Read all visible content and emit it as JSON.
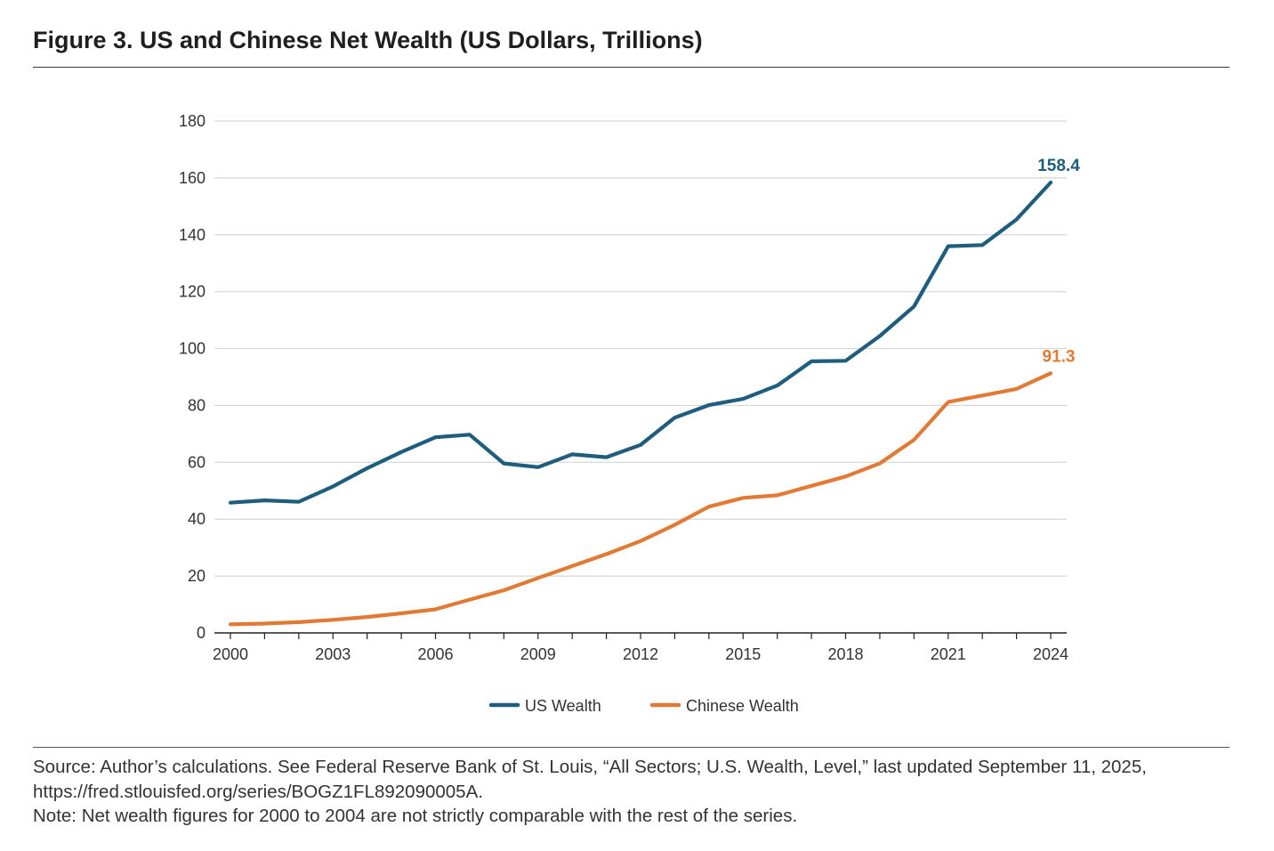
{
  "figure": {
    "title": "Figure 3. US and Chinese Net Wealth (US Dollars, Trillions)"
  },
  "chart_data": {
    "type": "line",
    "title": "Figure 3. US and Chinese Net Wealth (US Dollars, Trillions)",
    "xlabel": "",
    "ylabel": "",
    "x": [
      2000,
      2001,
      2002,
      2003,
      2004,
      2005,
      2006,
      2007,
      2008,
      2009,
      2010,
      2011,
      2012,
      2013,
      2014,
      2015,
      2016,
      2017,
      2018,
      2019,
      2020,
      2021,
      2022,
      2023,
      2024
    ],
    "xticks": [
      "2000",
      "2003",
      "2006",
      "2009",
      "2012",
      "2015",
      "2018",
      "2021",
      "2024"
    ],
    "yticks": [
      "0",
      "20",
      "40",
      "60",
      "80",
      "100",
      "120",
      "140",
      "160",
      "180"
    ],
    "ylim": [
      0,
      180
    ],
    "xlim": [
      2000,
      2024
    ],
    "grid": "horizontal",
    "legend_position": "bottom-center",
    "series": [
      {
        "name": "US Wealth",
        "color": "#1e5d7d",
        "end_label": "158.4",
        "values": [
          45.8,
          46.6,
          46.1,
          51.5,
          57.9,
          63.6,
          68.8,
          69.7,
          59.6,
          58.3,
          62.8,
          61.8,
          66.1,
          75.7,
          80.1,
          82.3,
          87.0,
          95.5,
          95.7,
          104.4,
          114.8,
          136.0,
          136.4,
          145.4,
          158.4
        ]
      },
      {
        "name": "Chinese Wealth",
        "color": "#e07a35",
        "end_label": "91.3",
        "values": [
          3.0,
          3.3,
          3.8,
          4.6,
          5.6,
          6.9,
          8.3,
          11.7,
          15.0,
          19.3,
          23.5,
          27.7,
          32.3,
          38.0,
          44.4,
          47.5,
          48.4,
          51.7,
          55.0,
          59.6,
          67.9,
          81.2,
          83.5,
          85.8,
          91.3
        ]
      }
    ]
  },
  "footer": {
    "source_line1": "Source: Author’s calculations. See Federal Reserve Bank of St. Louis, “All Sectors; U.S. Wealth, Level,” last updated September 11, 2025,",
    "source_line2": "https://fred.stlouisfed.org/series/BOGZ1FL892090005A.",
    "note": "Note: Net wealth figures for 2000 to 2004 are not strictly comparable with the rest of the series."
  }
}
